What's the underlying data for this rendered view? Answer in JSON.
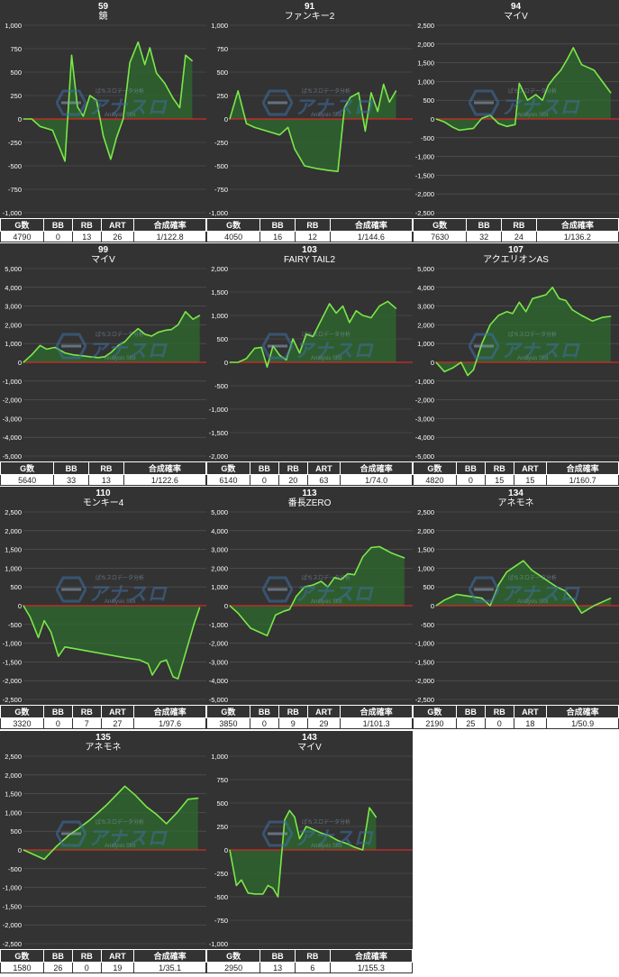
{
  "icons": {
    "watermark": "slot-analysis-logo"
  },
  "watermark": {
    "top": "ぱちスロデータ分析",
    "main": "アナスロ",
    "sub": "Analysis Slot"
  },
  "colors": {
    "background": "#333333",
    "line": "#7be84a",
    "fill": "#2e6b2e",
    "zero_line": "#d62828",
    "grid": "#5a5a5a",
    "text": "#ffffff"
  },
  "chart_data": [
    {
      "type": "area",
      "number": "59",
      "title": "鏡",
      "ylim": [
        -1000,
        1000
      ],
      "yticks": [
        1000,
        750,
        500,
        250,
        0,
        -250,
        -500,
        -750,
        -1000
      ],
      "values": [
        0,
        0,
        -80,
        -120,
        -450,
        680,
        130,
        30,
        250,
        200,
        -180,
        -430,
        -200,
        0,
        600,
        820,
        580,
        760,
        490,
        380,
        220,
        120,
        680,
        620
      ],
      "x": [
        0,
        10,
        20,
        35,
        50,
        58,
        65,
        72,
        80,
        88,
        96,
        105,
        112,
        120,
        128,
        138,
        146,
        152,
        160,
        170,
        180,
        188,
        195,
        203
      ],
      "table": {
        "headers": [
          "G数",
          "BB",
          "RB",
          "ART",
          "合成確率"
        ],
        "values": [
          "4790",
          "0",
          "13",
          "26",
          "1/122.8"
        ]
      }
    },
    {
      "type": "area",
      "number": "91",
      "title": "ファンキー2",
      "ylim": [
        -1000,
        1000
      ],
      "yticks": [
        1000,
        750,
        500,
        250,
        0,
        -250,
        -500,
        -750,
        -1000
      ],
      "values": [
        0,
        300,
        -50,
        -90,
        -130,
        -170,
        -90,
        -320,
        -500,
        -530,
        -550,
        -560,
        120,
        230,
        280,
        -130,
        280,
        80,
        370,
        180,
        300
      ],
      "x": [
        0,
        10,
        20,
        30,
        45,
        60,
        70,
        78,
        90,
        105,
        120,
        130,
        138,
        145,
        155,
        163,
        170,
        178,
        185,
        192,
        200
      ],
      "table": {
        "headers": [
          "G数",
          "BB",
          "RB",
          "合成確率"
        ],
        "values": [
          "4050",
          "16",
          "12",
          "1/144.6"
        ]
      }
    },
    {
      "type": "area",
      "number": "94",
      "title": "マイV",
      "ylim": [
        -2500,
        2500
      ],
      "yticks": [
        2500,
        2000,
        1500,
        1000,
        500,
        0,
        -500,
        -1000,
        -1500,
        -2000,
        -2500
      ],
      "values": [
        0,
        -80,
        -220,
        -300,
        -270,
        -250,
        20,
        100,
        -120,
        -200,
        -150,
        950,
        500,
        650,
        500,
        900,
        1100,
        1300,
        1600,
        1900,
        1450,
        1350,
        1300,
        1000,
        700
      ],
      "x": [
        0,
        10,
        20,
        28,
        38,
        45,
        55,
        65,
        75,
        85,
        95,
        100,
        110,
        120,
        128,
        135,
        142,
        150,
        158,
        165,
        175,
        185,
        190,
        200,
        210
      ],
      "table": {
        "headers": [
          "G数",
          "BB",
          "RB",
          "合成確率"
        ],
        "values": [
          "7630",
          "32",
          "24",
          "1/136.2"
        ]
      }
    },
    {
      "type": "area",
      "number": "99",
      "title": "マイV",
      "ylim": [
        -5000,
        5000
      ],
      "yticks": [
        5000,
        4000,
        3000,
        2000,
        1000,
        0,
        -1000,
        -2000,
        -3000,
        -4000,
        -5000
      ],
      "values": [
        0,
        400,
        900,
        700,
        800,
        500,
        400,
        350,
        300,
        250,
        300,
        550,
        900,
        1100,
        1500,
        1800,
        1500,
        1400,
        1600,
        1700,
        1750,
        2000,
        2700,
        2300,
        2500
      ],
      "x": [
        0,
        10,
        20,
        28,
        38,
        50,
        60,
        70,
        80,
        90,
        98,
        106,
        114,
        122,
        130,
        138,
        146,
        154,
        162,
        170,
        178,
        186,
        195,
        204,
        212
      ],
      "table": {
        "headers": [
          "G数",
          "BB",
          "RB",
          "合成確率"
        ],
        "values": [
          "5640",
          "33",
          "13",
          "1/122.6"
        ]
      }
    },
    {
      "type": "area",
      "number": "103",
      "title": "FAIRY TAIL2",
      "ylim": [
        -2000,
        2000
      ],
      "yticks": [
        2000,
        1500,
        1000,
        500,
        0,
        -500,
        -1000,
        -1500,
        -2000
      ],
      "values": [
        0,
        0,
        80,
        300,
        320,
        -100,
        350,
        150,
        50,
        500,
        200,
        600,
        550,
        900,
        1250,
        1050,
        1200,
        850,
        1100,
        1000,
        950,
        1200,
        1300,
        1150
      ],
      "x": [
        0,
        10,
        20,
        30,
        38,
        45,
        52,
        60,
        68,
        76,
        84,
        92,
        100,
        110,
        120,
        128,
        136,
        144,
        152,
        160,
        170,
        180,
        190,
        200
      ],
      "table": {
        "headers": [
          "G数",
          "BB",
          "RB",
          "ART",
          "合成確率"
        ],
        "values": [
          "6140",
          "0",
          "20",
          "63",
          "1/74.0"
        ]
      }
    },
    {
      "type": "area",
      "number": "107",
      "title": "アクエリオンAS",
      "ylim": [
        -5000,
        5000
      ],
      "yticks": [
        5000,
        4000,
        3000,
        2000,
        1000,
        0,
        -1000,
        -2000,
        -3000,
        -4000,
        -5000
      ],
      "values": [
        0,
        -500,
        -300,
        0,
        -700,
        -400,
        1000,
        2000,
        2500,
        2700,
        2600,
        3200,
        2700,
        3400,
        3500,
        3600,
        4000,
        3400,
        3300,
        2800,
        2500,
        2200,
        2400,
        2450
      ],
      "x": [
        0,
        10,
        20,
        30,
        38,
        45,
        55,
        65,
        75,
        85,
        92,
        100,
        108,
        116,
        124,
        132,
        140,
        148,
        156,
        164,
        175,
        188,
        200,
        210
      ],
      "table": {
        "headers": [
          "G数",
          "BB",
          "RB",
          "ART",
          "合成確率"
        ],
        "values": [
          "4820",
          "0",
          "15",
          "15",
          "1/160.7"
        ]
      }
    },
    {
      "type": "area",
      "number": "110",
      "title": "モンキー4",
      "ylim": [
        -2500,
        2500
      ],
      "yticks": [
        2500,
        2000,
        1500,
        1000,
        500,
        0,
        -500,
        -1000,
        -1500,
        -2000,
        -2500
      ],
      "values": [
        0,
        -300,
        -850,
        -400,
        -700,
        -1350,
        -1100,
        -1200,
        -1300,
        -1400,
        -1450,
        -1550,
        -1850,
        -1500,
        -1450,
        -1900,
        -1950,
        -500,
        -50
      ],
      "x": [
        0,
        8,
        18,
        25,
        33,
        42,
        50,
        75,
        100,
        125,
        140,
        150,
        155,
        165,
        172,
        180,
        186,
        205,
        212
      ],
      "table": {
        "headers": [
          "G数",
          "BB",
          "RB",
          "ART",
          "合成確率"
        ],
        "values": [
          "3320",
          "0",
          "7",
          "27",
          "1/97.6"
        ]
      }
    },
    {
      "type": "area",
      "number": "113",
      "title": "番長ZERO",
      "ylim": [
        -5000,
        5000
      ],
      "yticks": [
        5000,
        4000,
        3000,
        2000,
        1000,
        0,
        -1000,
        -2000,
        -3000,
        -4000,
        -5000
      ],
      "values": [
        0,
        -400,
        -1200,
        -1400,
        -1600,
        -500,
        -300,
        -200,
        500,
        1000,
        1100,
        1300,
        1000,
        1500,
        1400,
        1700,
        1650,
        2600,
        3100,
        3150,
        2800,
        2550
      ],
      "x": [
        0,
        10,
        25,
        35,
        45,
        55,
        65,
        72,
        80,
        90,
        100,
        110,
        118,
        126,
        134,
        142,
        150,
        160,
        170,
        180,
        195,
        210
      ],
      "table": {
        "headers": [
          "G数",
          "BB",
          "RB",
          "ART",
          "合成確率"
        ],
        "values": [
          "3850",
          "0",
          "9",
          "29",
          "1/101.3"
        ]
      }
    },
    {
      "type": "area",
      "number": "134",
      "title": "アネモネ",
      "ylim": [
        -2500,
        2500
      ],
      "yticks": [
        2500,
        2000,
        1500,
        1000,
        500,
        0,
        -500,
        -1000,
        -1500,
        -2000,
        -2500
      ],
      "values": [
        0,
        150,
        300,
        250,
        200,
        0,
        550,
        900,
        1050,
        1200,
        950,
        800,
        650,
        500,
        400,
        150,
        -200,
        0,
        200
      ],
      "x": [
        0,
        10,
        25,
        40,
        55,
        65,
        75,
        85,
        95,
        105,
        115,
        125,
        135,
        145,
        155,
        165,
        175,
        190,
        210
      ],
      "table": {
        "headers": [
          "G数",
          "BB",
          "RB",
          "ART",
          "合成確率"
        ],
        "values": [
          "2190",
          "25",
          "0",
          "18",
          "1/50.9"
        ]
      }
    },
    {
      "type": "area",
      "number": "135",
      "title": "アネモネ",
      "ylim": [
        -2500,
        2500
      ],
      "yticks": [
        2500,
        2000,
        1500,
        1000,
        500,
        0,
        -500,
        -1000,
        -1500,
        -2000,
        -2500
      ],
      "values": [
        0,
        -120,
        -250,
        100,
        400,
        550,
        800,
        1200,
        1700,
        1450,
        1150,
        950,
        700,
        1000,
        1350,
        1380
      ],
      "x": [
        0,
        12,
        25,
        40,
        55,
        65,
        80,
        100,
        122,
        135,
        148,
        160,
        172,
        185,
        198,
        210
      ],
      "table": {
        "headers": [
          "G数",
          "BB",
          "RB",
          "ART",
          "合成確率"
        ],
        "values": [
          "1580",
          "26",
          "0",
          "19",
          "1/35.1"
        ]
      }
    },
    {
      "type": "area",
      "number": "143",
      "title": "マイV",
      "ylim": [
        -1000,
        1000
      ],
      "yticks": [
        1000,
        750,
        500,
        250,
        0,
        -250,
        -500,
        -750,
        -1000
      ],
      "values": [
        0,
        -380,
        -320,
        -460,
        -470,
        -470,
        -380,
        -410,
        -500,
        320,
        420,
        350,
        120,
        250,
        220,
        180,
        150,
        100,
        70,
        30,
        0,
        450,
        350
      ],
      "x": [
        0,
        8,
        14,
        22,
        30,
        40,
        46,
        52,
        58,
        66,
        72,
        78,
        84,
        92,
        100,
        110,
        120,
        130,
        140,
        150,
        160,
        168,
        176
      ],
      "table": {
        "headers": [
          "G数",
          "BB",
          "RB",
          "合成確率"
        ],
        "values": [
          "2950",
          "13",
          "6",
          "1/155.3"
        ]
      }
    }
  ]
}
